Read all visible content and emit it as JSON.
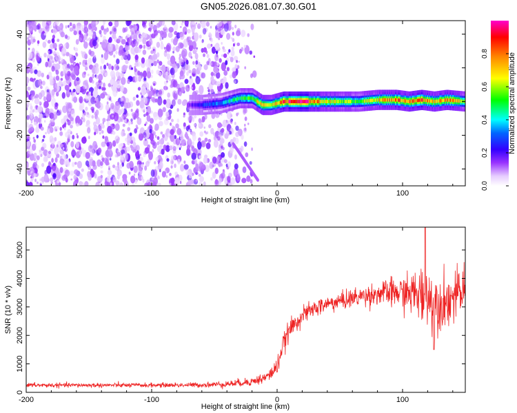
{
  "figure_title": "GN05.2026.081.07.30.G01",
  "chart_data": [
    {
      "type": "heatmap",
      "title": "",
      "xlabel": "Height of straight line (km)",
      "ylabel": "Frequency (Hz)",
      "xlim": [
        -200,
        150
      ],
      "ylim": [
        -50,
        48
      ],
      "xticks": [
        -200,
        -100,
        0,
        100
      ],
      "yticks": [
        -40,
        -20,
        0,
        20,
        40
      ],
      "colorbar": {
        "label": "Normalized spectral amplitude",
        "range": [
          0.0,
          1.0
        ],
        "ticks": [
          "0.0",
          "0.2",
          "0.4",
          "0.6",
          "0.8"
        ],
        "colormap": [
          "#ffffff",
          "#cc99ff",
          "#8800ff",
          "#0000ff",
          "#00ffff",
          "#00ff00",
          "#ffff00",
          "#ff8800",
          "#ff0000",
          "#ff00cc"
        ]
      },
      "description_of_data": {
        "noise_region_km": [
          -200,
          -25
        ],
        "signal_band_start_km": -70,
        "signal_track": [
          {
            "x": -70,
            "f": -2,
            "amp": 0.15
          },
          {
            "x": -60,
            "f": -2,
            "amp": 0.25
          },
          {
            "x": -45,
            "f": -1,
            "amp": 0.35
          },
          {
            "x": -30,
            "f": 2,
            "amp": 0.5
          },
          {
            "x": -20,
            "f": 2,
            "amp": 0.55
          },
          {
            "x": -12,
            "f": -2,
            "amp": 0.75
          },
          {
            "x": -5,
            "f": -2,
            "amp": 0.6
          },
          {
            "x": 5,
            "f": 0,
            "amp": 0.85
          },
          {
            "x": 20,
            "f": 0,
            "amp": 0.95
          },
          {
            "x": 35,
            "f": 0,
            "amp": 0.7
          },
          {
            "x": 50,
            "f": 0,
            "amp": 0.6
          },
          {
            "x": 65,
            "f": 0,
            "amp": 0.55
          },
          {
            "x": 80,
            "f": 1,
            "amp": 0.7
          },
          {
            "x": 95,
            "f": 1,
            "amp": 0.8
          },
          {
            "x": 105,
            "f": 0,
            "amp": 0.75
          },
          {
            "x": 115,
            "f": 1,
            "amp": 0.85
          },
          {
            "x": 125,
            "f": 0,
            "amp": 0.7
          },
          {
            "x": 135,
            "f": 1,
            "amp": 0.8
          },
          {
            "x": 150,
            "f": 0,
            "amp": 0.6
          }
        ]
      }
    },
    {
      "type": "line",
      "title": "",
      "xlabel": "Height of straight line (km)",
      "ylabel": "SNR (10 * v/v)",
      "xlim": [
        -200,
        150
      ],
      "ylim": [
        0,
        5800
      ],
      "xticks": [
        -200,
        -100,
        0,
        100
      ],
      "yticks": [
        0,
        1000,
        2000,
        3000,
        4000,
        5000
      ],
      "series": [
        {
          "name": "SNR",
          "color": "#ee2222",
          "x": [
            -200,
            -150,
            -100,
            -60,
            -40,
            -20,
            -10,
            -5,
            0,
            5,
            10,
            20,
            30,
            40,
            50,
            60,
            70,
            80,
            90,
            100,
            110,
            115,
            120,
            125,
            130,
            140,
            150
          ],
          "y": [
            250,
            250,
            250,
            260,
            290,
            380,
            500,
            650,
            900,
            1700,
            2200,
            2700,
            2950,
            3100,
            3200,
            3300,
            3400,
            3450,
            3500,
            3500,
            3450,
            3400,
            3300,
            3200,
            3150,
            3300,
            3600
          ],
          "noise_amplitude": [
            80,
            80,
            80,
            90,
            120,
            150,
            200,
            250,
            300,
            350,
            350,
            300,
            300,
            300,
            300,
            350,
            350,
            400,
            500,
            600,
            800,
            1100,
            1300,
            1000,
            1000,
            900,
            800
          ],
          "peak_value": 5800,
          "peak_x": 118,
          "trough_value": 1500,
          "trough_x": 125
        }
      ]
    }
  ]
}
